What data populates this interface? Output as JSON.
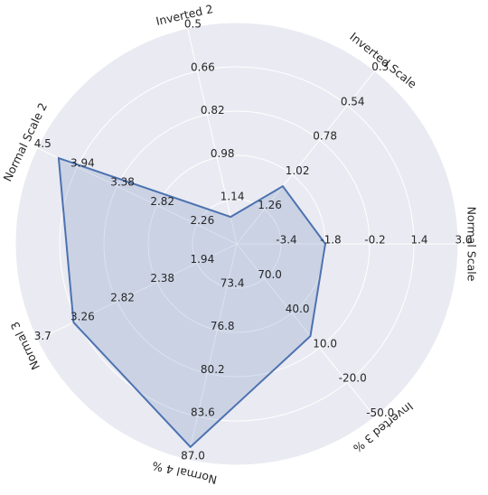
{
  "chart_data": {
    "type": "radar",
    "axes": [
      {
        "name": "Normal Scale",
        "lim": [
          -5.0,
          3.0
        ],
        "ticks": [
          -3.4,
          -1.8,
          -0.2,
          1.4,
          {
            "value": 3,
            "label": "3.0"
          }
        ]
      },
      {
        "name": "Inverted Scale",
        "lim": [
          1.5,
          0.3
        ],
        "ticks": [
          1.26,
          1.02,
          0.78,
          0.54,
          0.3
        ]
      },
      {
        "name": "Inverted 2",
        "lim": [
          1.3,
          0.5
        ],
        "ticks": [
          1.14,
          0.98,
          0.82,
          0.66,
          0.5
        ]
      },
      {
        "name": "Normal Scale 2",
        "lim": [
          1.7,
          4.5
        ],
        "ticks": [
          2.26,
          2.82,
          3.38,
          3.94,
          4.5
        ]
      },
      {
        "name": "Normal 3",
        "lim": [
          1.5,
          3.7
        ],
        "ticks": [
          1.94,
          2.38,
          2.82,
          3.26,
          3.7
        ]
      },
      {
        "name": "Normal 4 %",
        "lim": [
          70.0,
          87.0
        ],
        "ticks": [
          73.4,
          76.8,
          80.2,
          83.6,
          {
            "value": 87,
            "label": "87.0"
          }
        ]
      },
      {
        "name": "Inverted 3 %",
        "lim": [
          100,
          -50
        ],
        "ticks": [
          {
            "value": 70,
            "label": "70.0"
          },
          {
            "value": 40,
            "label": "40.0"
          },
          {
            "value": 10,
            "label": "10.0"
          },
          {
            "value": -20,
            "label": "-20.0"
          },
          {
            "value": -50,
            "label": "-50.0"
          }
        ]
      }
    ],
    "series": [
      {
        "color": "#4c72b0",
        "values": [
          -1.8,
          1.1,
          1.2,
          4.2,
          3.3,
          86,
          20
        ]
      }
    ]
  }
}
